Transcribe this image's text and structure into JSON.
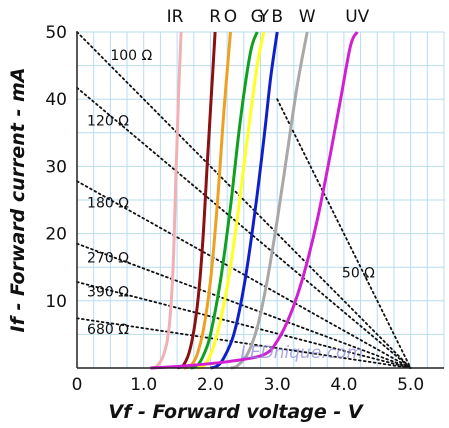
{
  "chart_data": {
    "type": "line",
    "title": "",
    "xlabel": "Vf - Forward voltage - V",
    "ylabel": "If - Forward current - mA",
    "xlim": [
      0,
      5.5
    ],
    "ylim": [
      0,
      50
    ],
    "grid": true,
    "x_ticks": [
      "0",
      "1.0",
      "2.0",
      "3.0",
      "4.0",
      "5.0"
    ],
    "y_ticks": [
      "10",
      "20",
      "30",
      "40",
      "50"
    ],
    "series": [
      {
        "name": "IR",
        "color": "#f0b0b4",
        "points": [
          [
            1.1,
            0
          ],
          [
            1.2,
            0.3
          ],
          [
            1.3,
            2
          ],
          [
            1.38,
            6
          ],
          [
            1.44,
            15
          ],
          [
            1.48,
            28
          ],
          [
            1.52,
            40
          ],
          [
            1.56,
            50
          ]
        ]
      },
      {
        "name": "R",
        "color": "#8b1010",
        "points": [
          [
            1.5,
            0
          ],
          [
            1.6,
            0.5
          ],
          [
            1.7,
            3
          ],
          [
            1.8,
            9
          ],
          [
            1.88,
            18
          ],
          [
            1.95,
            30
          ],
          [
            2.01,
            40
          ],
          [
            2.07,
            50
          ]
        ]
      },
      {
        "name": "O",
        "color": "#f0a020",
        "points": [
          [
            1.6,
            0
          ],
          [
            1.7,
            0.3
          ],
          [
            1.8,
            2
          ],
          [
            1.9,
            6
          ],
          [
            2.0,
            13
          ],
          [
            2.1,
            24
          ],
          [
            2.2,
            38
          ],
          [
            2.3,
            50
          ]
        ]
      },
      {
        "name": "G",
        "color": "#10a020",
        "points": [
          [
            1.7,
            0
          ],
          [
            1.8,
            0.3
          ],
          [
            1.9,
            2
          ],
          [
            2.0,
            5
          ],
          [
            2.15,
            13
          ],
          [
            2.3,
            24
          ],
          [
            2.45,
            37
          ],
          [
            2.6,
            47
          ],
          [
            2.7,
            50
          ]
        ]
      },
      {
        "name": "Y",
        "color": "#ffff20",
        "points": [
          [
            1.8,
            0
          ],
          [
            1.9,
            0.3
          ],
          [
            2.0,
            2
          ],
          [
            2.1,
            5
          ],
          [
            2.25,
            12
          ],
          [
            2.4,
            22
          ],
          [
            2.55,
            34
          ],
          [
            2.7,
            45
          ],
          [
            2.8,
            50
          ]
        ]
      },
      {
        "name": "B",
        "color": "#1020c8",
        "points": [
          [
            2.0,
            0
          ],
          [
            2.1,
            0.3
          ],
          [
            2.2,
            1.5
          ],
          [
            2.35,
            5
          ],
          [
            2.5,
            12
          ],
          [
            2.65,
            22
          ],
          [
            2.8,
            34
          ],
          [
            2.9,
            43
          ],
          [
            3.0,
            50
          ]
        ]
      },
      {
        "name": "W",
        "color": "#a8a8a8",
        "points": [
          [
            2.3,
            0
          ],
          [
            2.4,
            0.3
          ],
          [
            2.55,
            2
          ],
          [
            2.7,
            6
          ],
          [
            2.85,
            13
          ],
          [
            3.0,
            22
          ],
          [
            3.15,
            32
          ],
          [
            3.3,
            42
          ],
          [
            3.45,
            50
          ]
        ]
      },
      {
        "name": "UV",
        "color": "#d020d0",
        "points": [
          [
            1.1,
            0
          ],
          [
            1.6,
            0.3
          ],
          [
            2.3,
            1
          ],
          [
            2.8,
            2
          ],
          [
            3.0,
            4
          ],
          [
            3.2,
            8
          ],
          [
            3.4,
            14
          ],
          [
            3.6,
            22
          ],
          [
            3.8,
            32
          ],
          [
            3.95,
            40
          ],
          [
            4.1,
            48
          ],
          [
            4.2,
            50
          ]
        ]
      }
    ],
    "resistor_lines": [
      {
        "label": "100 Ω",
        "start": [
          0,
          50
        ],
        "end": [
          5,
          0
        ]
      },
      {
        "label": "120 Ω",
        "start": [
          0,
          41.7
        ],
        "end": [
          5,
          0
        ]
      },
      {
        "label": "180 Ω",
        "start": [
          0,
          27.8
        ],
        "end": [
          5,
          0
        ]
      },
      {
        "label": "270 Ω",
        "start": [
          0,
          18.5
        ],
        "end": [
          5,
          0
        ]
      },
      {
        "label": "390 Ω",
        "start": [
          0,
          12.8
        ],
        "end": [
          5,
          0
        ]
      },
      {
        "label": "680 Ω",
        "start": [
          0,
          7.4
        ],
        "end": [
          5,
          0
        ]
      },
      {
        "label": "50 Ω",
        "start": [
          3,
          40
        ],
        "end": [
          5,
          0
        ]
      }
    ],
    "watermark": "LEDnique.com"
  },
  "colors": {
    "grid": "#b8dcf0",
    "axis": "#222222",
    "resistor_line": "#111111",
    "watermark": "#8a8ad8"
  }
}
